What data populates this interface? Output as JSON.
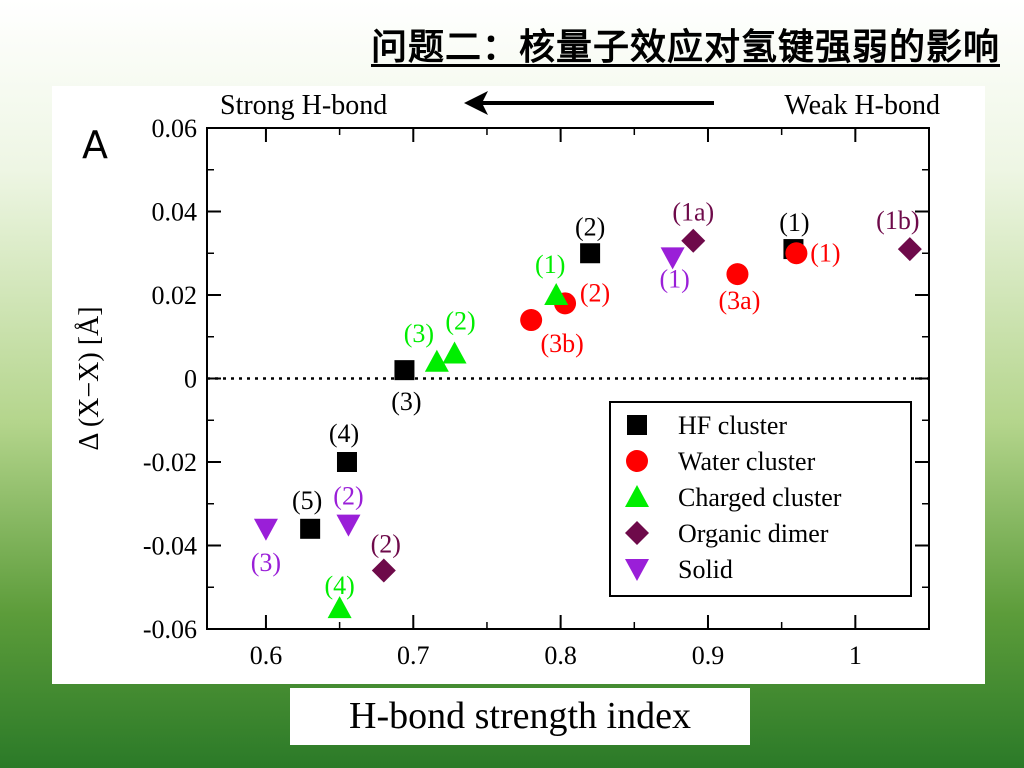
{
  "slide": {
    "title": "问题二：核量子效应对氢键强弱的影响"
  },
  "colors": {
    "HF cluster": "#000000",
    "Water cluster": "#ff0000",
    "Charged cluster": "#00ee00",
    "Organic dimer": "#6e0a4a",
    "Solid": "#9a1fd8",
    "slide_background_top": "#ffffff",
    "slide_background_bottom": "#2b7a28"
  },
  "chart_data": {
    "type": "scatter",
    "panel_label": "A",
    "xlabel": "H-bond strength index",
    "ylabel": "Δ (X−X) [Å]",
    "xlim": [
      0.56,
      1.05
    ],
    "ylim": [
      -0.06,
      0.06
    ],
    "xticks": [
      "0.6",
      "0.7",
      "0.8",
      "0.9",
      "1"
    ],
    "yticks": [
      "0.06",
      "0.04",
      "0.02",
      "0",
      "-0.02",
      "-0.04",
      "-0.06"
    ],
    "grid": false,
    "zero_line": {
      "y": 0,
      "style": "dotted"
    },
    "legend_position": "bottom-right",
    "annotation": {
      "left": "Strong H-bond",
      "right": "Weak H-bond",
      "arrow": "right-to-left"
    },
    "series": [
      {
        "name": "HF cluster",
        "marker": "square",
        "points": [
          {
            "x": 0.82,
            "y": 0.03,
            "label": "(2)"
          },
          {
            "x": 0.958,
            "y": 0.031,
            "label": "(1)"
          },
          {
            "x": 0.694,
            "y": 0.002,
            "label": "(3)"
          },
          {
            "x": 0.655,
            "y": -0.02,
            "label": "(4)"
          },
          {
            "x": 0.63,
            "y": -0.036,
            "label": "(5)"
          }
        ]
      },
      {
        "name": "Water cluster",
        "marker": "circle",
        "points": [
          {
            "x": 0.96,
            "y": 0.03,
            "label": "(1)"
          },
          {
            "x": 0.803,
            "y": 0.018,
            "label": "(2)"
          },
          {
            "x": 0.92,
            "y": 0.025,
            "label": "(3a)"
          },
          {
            "x": 0.78,
            "y": 0.014,
            "label": "(3b)"
          }
        ]
      },
      {
        "name": "Charged cluster",
        "marker": "triangle-up",
        "points": [
          {
            "x": 0.797,
            "y": 0.02,
            "label": "(1)"
          },
          {
            "x": 0.728,
            "y": 0.006,
            "label": "(2)"
          },
          {
            "x": 0.716,
            "y": 0.004,
            "label": "(3)"
          },
          {
            "x": 0.65,
            "y": -0.055,
            "label": "(4)"
          }
        ]
      },
      {
        "name": "Organic dimer",
        "marker": "diamond",
        "points": [
          {
            "x": 0.89,
            "y": 0.033,
            "label": "(1a)"
          },
          {
            "x": 1.037,
            "y": 0.031,
            "label": "(1b)"
          },
          {
            "x": 0.68,
            "y": -0.046,
            "label": "(2)"
          }
        ]
      },
      {
        "name": "Solid",
        "marker": "triangle-down",
        "points": [
          {
            "x": 0.876,
            "y": 0.029,
            "label": "(1)"
          },
          {
            "x": 0.656,
            "y": -0.035,
            "label": "(2)"
          },
          {
            "x": 0.6,
            "y": -0.036,
            "label": "(3)"
          }
        ]
      }
    ]
  }
}
